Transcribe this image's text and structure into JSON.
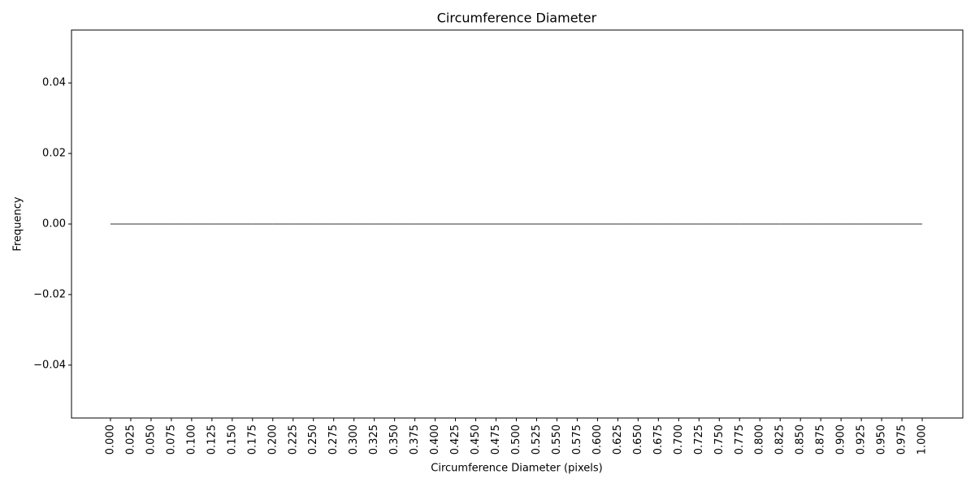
{
  "chart_data": {
    "type": "histogram",
    "title": "Circumference Diameter",
    "xlabel": "Circumference Diameter (pixels)",
    "ylabel": "Frequency",
    "bins": [
      0,
      0.025,
      0.05,
      0.075,
      0.1,
      0.125,
      0.15,
      0.175,
      0.2,
      0.225,
      0.25,
      0.275,
      0.3,
      0.325,
      0.35,
      0.375,
      0.4,
      0.425,
      0.45,
      0.475,
      0.5,
      0.525,
      0.55,
      0.575,
      0.6,
      0.625,
      0.65,
      0.675,
      0.7,
      0.725,
      0.75,
      0.775,
      0.8,
      0.825,
      0.85,
      0.875,
      0.9,
      0.925,
      0.95,
      0.975,
      1
    ],
    "values": [
      0,
      0,
      0,
      0,
      0,
      0,
      0,
      0,
      0,
      0,
      0,
      0,
      0,
      0,
      0,
      0,
      0,
      0,
      0,
      0,
      0,
      0,
      0,
      0,
      0,
      0,
      0,
      0,
      0,
      0,
      0,
      0,
      0,
      0,
      0,
      0,
      0,
      0,
      0,
      0
    ],
    "color": "#1f77b4",
    "edgecolor": "#333333",
    "xlim": [
      -0.048,
      1.05
    ],
    "ylim": [
      -0.055,
      0.055
    ],
    "xticks": [
      {
        "value": 0,
        "label": "0.000"
      },
      {
        "value": 0.025,
        "label": "0.025"
      },
      {
        "value": 0.05,
        "label": "0.050"
      },
      {
        "value": 0.075,
        "label": "0.075"
      },
      {
        "value": 0.1,
        "label": "0.100"
      },
      {
        "value": 0.125,
        "label": "0.125"
      },
      {
        "value": 0.15,
        "label": "0.150"
      },
      {
        "value": 0.175,
        "label": "0.175"
      },
      {
        "value": 0.2,
        "label": "0.200"
      },
      {
        "value": 0.225,
        "label": "0.225"
      },
      {
        "value": 0.25,
        "label": "0.250"
      },
      {
        "value": 0.275,
        "label": "0.275"
      },
      {
        "value": 0.3,
        "label": "0.300"
      },
      {
        "value": 0.325,
        "label": "0.325"
      },
      {
        "value": 0.35,
        "label": "0.350"
      },
      {
        "value": 0.375,
        "label": "0.375"
      },
      {
        "value": 0.4,
        "label": "0.400"
      },
      {
        "value": 0.425,
        "label": "0.425"
      },
      {
        "value": 0.45,
        "label": "0.450"
      },
      {
        "value": 0.475,
        "label": "0.475"
      },
      {
        "value": 0.5,
        "label": "0.500"
      },
      {
        "value": 0.525,
        "label": "0.525"
      },
      {
        "value": 0.55,
        "label": "0.550"
      },
      {
        "value": 0.575,
        "label": "0.575"
      },
      {
        "value": 0.6,
        "label": "0.600"
      },
      {
        "value": 0.625,
        "label": "0.625"
      },
      {
        "value": 0.65,
        "label": "0.650"
      },
      {
        "value": 0.675,
        "label": "0.675"
      },
      {
        "value": 0.7,
        "label": "0.700"
      },
      {
        "value": 0.725,
        "label": "0.725"
      },
      {
        "value": 0.75,
        "label": "0.750"
      },
      {
        "value": 0.775,
        "label": "0.775"
      },
      {
        "value": 0.8,
        "label": "0.800"
      },
      {
        "value": 0.825,
        "label": "0.825"
      },
      {
        "value": 0.85,
        "label": "0.850"
      },
      {
        "value": 0.875,
        "label": "0.875"
      },
      {
        "value": 0.9,
        "label": "0.900"
      },
      {
        "value": 0.925,
        "label": "0.925"
      },
      {
        "value": 0.95,
        "label": "0.950"
      },
      {
        "value": 0.975,
        "label": "0.975"
      },
      {
        "value": 1,
        "label": "1.000"
      }
    ],
    "yticks": [
      {
        "value": -0.04,
        "label": "−0.04"
      },
      {
        "value": -0.02,
        "label": "−0.02"
      },
      {
        "value": 0,
        "label": "0.00"
      },
      {
        "value": 0.02,
        "label": "0.02"
      },
      {
        "value": 0.04,
        "label": "0.04"
      }
    ],
    "grid": false
  }
}
